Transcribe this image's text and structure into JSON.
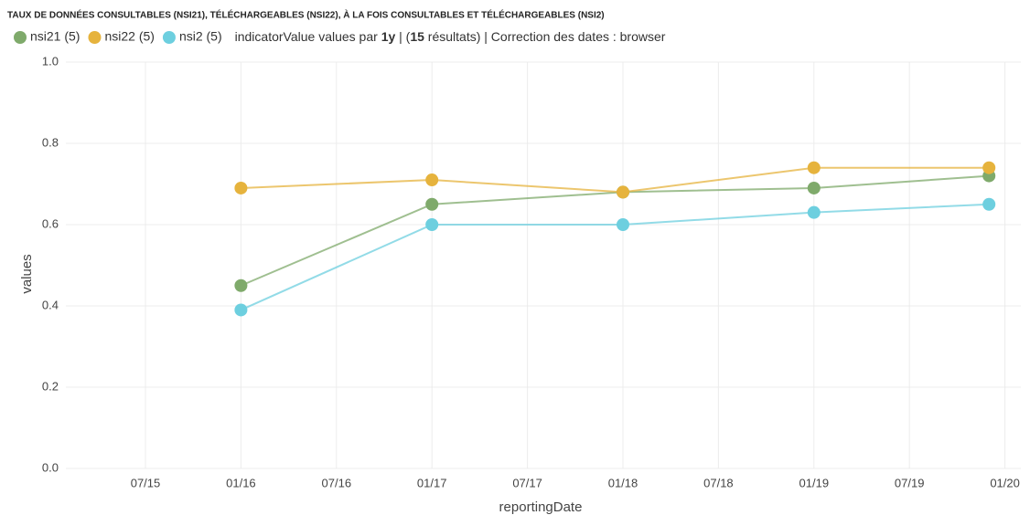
{
  "chart_data": {
    "type": "line",
    "title": "TAUX DE DONNÉES CONSULTABLES (NSI21), TÉLÉCHARGEABLES (NSI22), À LA FOIS CONSULTABLES ET TÉLÉCHARGEABLES (NSI2)",
    "info": [
      "indicatorValue values par ",
      "1y",
      " | (",
      "15",
      " résultats) | Correction des dates : browser"
    ],
    "x_label": "reportingDate",
    "y_label": "values",
    "x": [
      "01/16",
      "01/17",
      "01/18",
      "01/19",
      "12/19"
    ],
    "series": [
      {
        "name": "nsi21 (5)",
        "color": "#7faa6b",
        "values": [
          0.45,
          0.65,
          0.68,
          0.69,
          0.72
        ]
      },
      {
        "name": "nsi22 (5)",
        "color": "#e6b33d",
        "values": [
          0.69,
          0.71,
          0.68,
          0.74,
          0.74
        ]
      },
      {
        "name": "nsi2 (5)",
        "color": "#6dcfdf",
        "values": [
          0.39,
          0.6,
          0.6,
          0.63,
          0.65
        ]
      }
    ],
    "xlim": [
      "02/15",
      "02/20"
    ],
    "xticks": [
      "07/15",
      "01/16",
      "07/16",
      "01/17",
      "07/17",
      "01/18",
      "07/18",
      "01/19",
      "07/19",
      "01/20"
    ],
    "ylim": [
      0,
      1
    ],
    "yticks": [
      {
        "value": 0,
        "label": "0.0"
      },
      0.2,
      0.4,
      0.6,
      0.8,
      {
        "value": 1,
        "label": "1.0"
      }
    ],
    "grid": true
  }
}
